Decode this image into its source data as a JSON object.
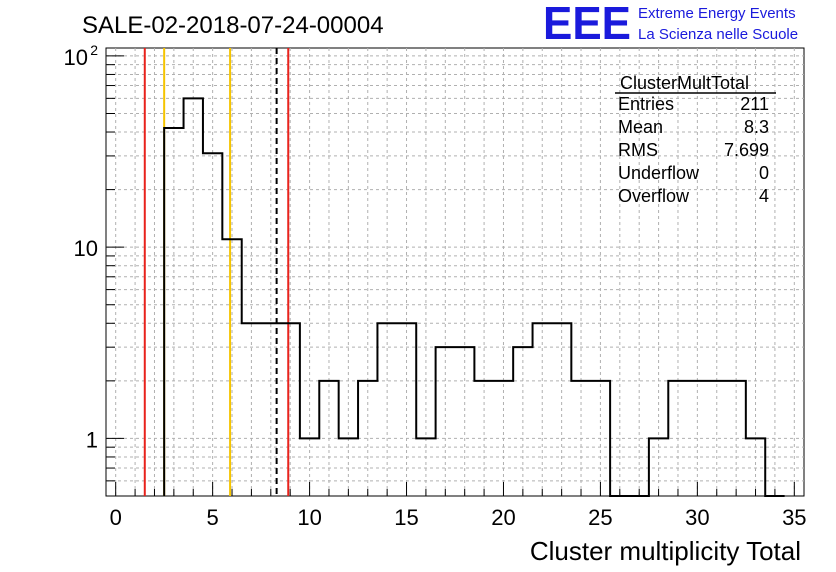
{
  "chart_data": {
    "type": "bar",
    "title": "SALE-02-2018-07-24-00004",
    "xlabel": "Cluster multiplicity Total",
    "ylabel": "",
    "xlim": [
      -0.5,
      35.5
    ],
    "ylim": [
      0.5,
      110
    ],
    "yscale": "log",
    "grid": true,
    "x_ticks": [
      0,
      5,
      10,
      15,
      20,
      25,
      30,
      35
    ],
    "y_ticks": [
      {
        "value": 1,
        "label": "1"
      },
      {
        "value": 10,
        "label": "10"
      },
      {
        "value": 100,
        "label": "10",
        "sup": "2"
      }
    ],
    "bins": {
      "low_edges": [
        2.5,
        3.5,
        4.5,
        5.5,
        6.5,
        7.5,
        8.5,
        9.5,
        10.5,
        11.5,
        12.5,
        13.5,
        14.5,
        15.5,
        16.5,
        17.5,
        18.5,
        19.5,
        20.5,
        21.5,
        22.5,
        23.5,
        24.5,
        25.5,
        26.5,
        27.5,
        28.5,
        29.5,
        30.5,
        31.5,
        32.5,
        33.5
      ],
      "high_edge": 34.5,
      "values": [
        42,
        60,
        31,
        11,
        4,
        4,
        4,
        1,
        2,
        1,
        2,
        4,
        4,
        1,
        3,
        3,
        2,
        2,
        3,
        4,
        4,
        2,
        2,
        0,
        0,
        1,
        2,
        2,
        2,
        2,
        1,
        0
      ]
    },
    "vertical_lines": [
      {
        "x": 1.5,
        "color": "#e8221c",
        "style": "solid"
      },
      {
        "x": 2.5,
        "color": "#f5c400",
        "style": "solid"
      },
      {
        "x": 5.9,
        "color": "#f5c400",
        "style": "solid"
      },
      {
        "x": 8.3,
        "color": "#000000",
        "style": "dashed"
      },
      {
        "x": 8.9,
        "color": "#e8221c",
        "style": "solid"
      }
    ],
    "stats": {
      "name": "ClusterMultTotal",
      "rows": [
        {
          "label": "Entries",
          "value": "211"
        },
        {
          "label": "Mean",
          "value": "8.3"
        },
        {
          "label": "RMS",
          "value": "7.699"
        },
        {
          "label": "Underflow",
          "value": "0"
        },
        {
          "label": "Overflow",
          "value": "4"
        }
      ]
    }
  },
  "logo": {
    "mark": "EEE",
    "line1": "Extreme Energy Events",
    "line2": "La Scienza nelle Scuole",
    "color": "#1a1adc"
  }
}
